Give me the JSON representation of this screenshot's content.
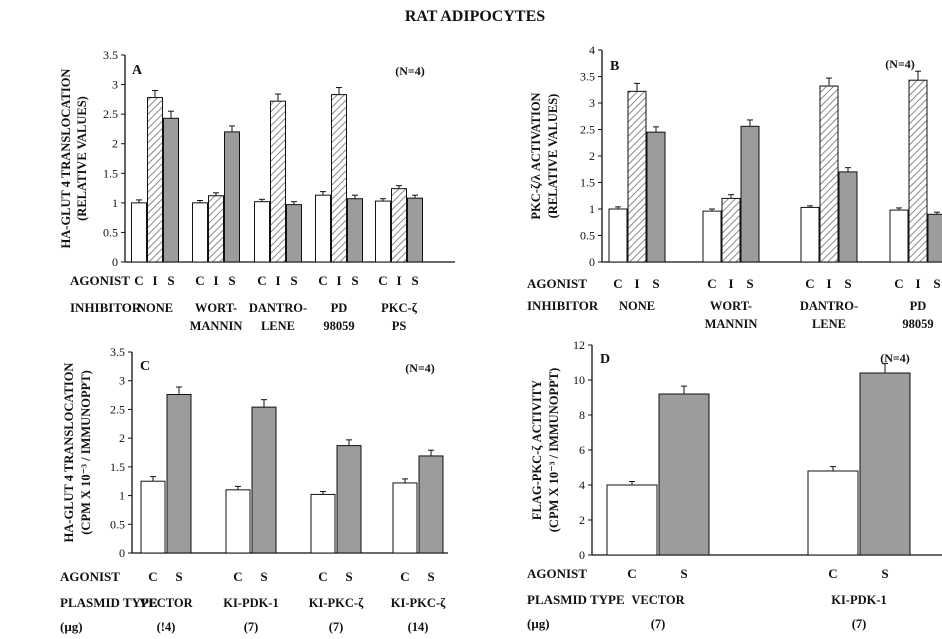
{
  "figure": {
    "title": "RAT ADIPOCYTES"
  },
  "chart_data": [
    {
      "panel": "A",
      "type": "bar",
      "note": "(N=4)",
      "ylabel_lines": [
        "HA-GLUT 4 TRANSLOCATION",
        "(RELATIVE VALUES)"
      ],
      "ylim": [
        0,
        3.5
      ],
      "yticks": [
        "0",
        "0.5",
        "1",
        "1.5",
        "2",
        "2.5",
        "3",
        "3.5"
      ],
      "row_labels": [
        "AGONIST",
        "INHIBITOR"
      ],
      "groups": [
        {
          "agonists": [
            "C",
            "I",
            "S"
          ],
          "label_lines": [
            "NONE"
          ],
          "values": [
            1.0,
            2.78,
            2.43
          ],
          "errors": [
            0.05,
            0.12,
            0.12
          ]
        },
        {
          "agonists": [
            "C",
            "I",
            "S"
          ],
          "label_lines": [
            "WORT-",
            "MANNIN"
          ],
          "values": [
            1.0,
            1.12,
            2.2
          ],
          "errors": [
            0.04,
            0.05,
            0.1
          ]
        },
        {
          "agonists": [
            "C",
            "I",
            "S"
          ],
          "label_lines": [
            "DANTRO-",
            "LENE"
          ],
          "values": [
            1.02,
            2.72,
            0.97
          ],
          "errors": [
            0.04,
            0.12,
            0.05
          ]
        },
        {
          "agonists": [
            "C",
            "I",
            "S"
          ],
          "label_lines": [
            "PD",
            "98059"
          ],
          "values": [
            1.13,
            2.83,
            1.07
          ],
          "errors": [
            0.06,
            0.12,
            0.06
          ]
        },
        {
          "agonists": [
            "C",
            "I",
            "S"
          ],
          "label_lines": [
            "PKC-ζ",
            "PS"
          ],
          "values": [
            1.03,
            1.24,
            1.08
          ],
          "errors": [
            0.04,
            0.05,
            0.05
          ]
        }
      ]
    },
    {
      "panel": "B",
      "type": "bar",
      "note": "(N=4)",
      "ylabel_lines": [
        "PKC-ζ/λ ACTIVATION",
        "(RELATIVE VALUES)"
      ],
      "ylim": [
        0,
        4
      ],
      "yticks": [
        "0",
        "0.5",
        "1",
        "1.5",
        "2",
        "2.5",
        "3",
        "3.5",
        "4"
      ],
      "row_labels": [
        "AGONIST",
        "INHIBITOR"
      ],
      "groups": [
        {
          "agonists": [
            "C",
            "I",
            "S"
          ],
          "label_lines": [
            "NONE"
          ],
          "values": [
            1.0,
            3.22,
            2.45
          ],
          "errors": [
            0.04,
            0.15,
            0.1
          ]
        },
        {
          "agonists": [
            "C",
            "I",
            "S"
          ],
          "label_lines": [
            "WORT-",
            "MANNIN"
          ],
          "values": [
            0.96,
            1.2,
            2.56
          ],
          "errors": [
            0.04,
            0.07,
            0.12
          ]
        },
        {
          "agonists": [
            "C",
            "I",
            "S"
          ],
          "label_lines": [
            "DANTRO-",
            "LENE"
          ],
          "values": [
            1.03,
            3.32,
            1.7
          ],
          "errors": [
            0.03,
            0.15,
            0.08
          ]
        },
        {
          "agonists": [
            "C",
            "I",
            "S"
          ],
          "label_lines": [
            "PD",
            "98059"
          ],
          "values": [
            0.98,
            3.43,
            0.9
          ],
          "errors": [
            0.04,
            0.17,
            0.04
          ]
        }
      ]
    },
    {
      "panel": "C",
      "type": "bar",
      "note": "(N=4)",
      "ylabel_lines": [
        "HA-GLUT 4 TRANSLOCATION",
        "(CPM X 10⁻³ / IMMUNOPPT)"
      ],
      "ylim": [
        0,
        3.5
      ],
      "yticks": [
        "0",
        "0.5",
        "1",
        "1.5",
        "2",
        "2.5",
        "3",
        "3.5"
      ],
      "row_labels": [
        "AGONIST",
        "PLASMID TYPE",
        "(μg)"
      ],
      "groups": [
        {
          "agonists": [
            "C",
            "S"
          ],
          "label_lines": [
            "VECTOR",
            "(!4)"
          ],
          "values": [
            1.25,
            2.76
          ],
          "errors": [
            0.08,
            0.13
          ]
        },
        {
          "agonists": [
            "C",
            "S"
          ],
          "label_lines": [
            "KI-PDK-1",
            "(7)"
          ],
          "values": [
            1.1,
            2.54
          ],
          "errors": [
            0.06,
            0.13
          ]
        },
        {
          "agonists": [
            "C",
            "S"
          ],
          "label_lines": [
            "KI-PKC-ζ",
            "(7)"
          ],
          "values": [
            1.02,
            1.87
          ],
          "errors": [
            0.05,
            0.1
          ]
        },
        {
          "agonists": [
            "C",
            "S"
          ],
          "label_lines": [
            "KI-PKC-ζ",
            "(14)"
          ],
          "values": [
            1.22,
            1.69
          ],
          "errors": [
            0.07,
            0.1
          ]
        }
      ]
    },
    {
      "panel": "D",
      "type": "bar",
      "note": "(N=4)",
      "ylabel_lines": [
        "FLAG-PKC-ζ ACTIVITY",
        "(CPM X 10⁻³ / IMMUNOPPT)"
      ],
      "ylim": [
        0,
        12
      ],
      "yticks": [
        "0",
        "2",
        "4",
        "6",
        "8",
        "10",
        "12"
      ],
      "row_labels": [
        "AGONIST",
        "PLASMID TYPE",
        "(μg)"
      ],
      "groups": [
        {
          "agonists": [
            "C",
            "S"
          ],
          "label_lines": [
            "VECTOR",
            "(7)"
          ],
          "values": [
            4.0,
            9.2
          ],
          "errors": [
            0.2,
            0.45
          ]
        },
        {
          "agonists": [
            "C",
            "S"
          ],
          "label_lines": [
            "KI-PDK-1",
            "(7)"
          ],
          "values": [
            4.8,
            10.4
          ],
          "errors": [
            0.25,
            0.55
          ]
        }
      ]
    }
  ],
  "colors": {
    "control": "#ffffff",
    "insulin_hatch": "#8a8a8a",
    "stimulus": "#9c9c9c",
    "axis": "#111111"
  }
}
